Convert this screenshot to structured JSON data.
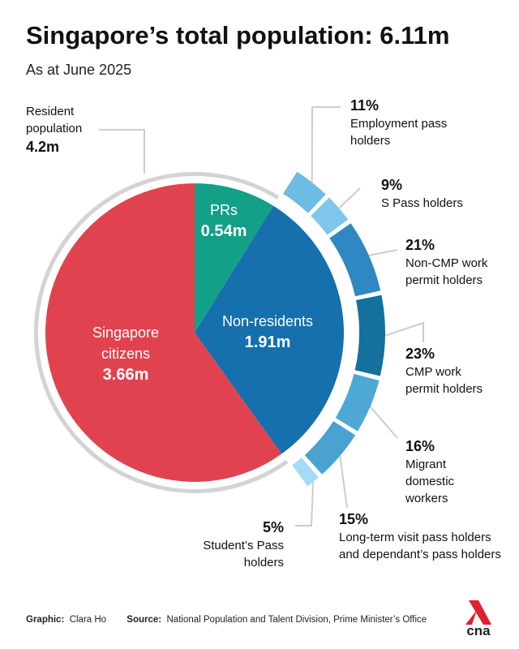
{
  "chart_data": {
    "type": "pie",
    "title": "Singapore’s total population: 6.11m",
    "subtitle": "As at June 2025",
    "categories": [
      "PRs",
      "Non-residents",
      "Singapore citizens"
    ],
    "values": [
      0.54,
      1.91,
      3.66
    ],
    "value_labels": [
      "0.54m",
      "1.91m",
      "3.66m"
    ],
    "colors": [
      "#12a087",
      "#1570ad",
      "#e0434f"
    ],
    "group": {
      "label": "Resident population",
      "value": 4.2,
      "value_label": "4.2m",
      "color": "#d3d3d3"
    },
    "breakdown": {
      "type": "ring",
      "categories": [
        "Employment pass holders",
        "S Pass holders",
        "Non-CMP work permit holders",
        "CMP work permit holders",
        "Migrant domestic workers",
        "Long-term visit pass holders and dependant’s pass holders",
        "Student’s Pass holders"
      ],
      "values": [
        11,
        9,
        21,
        23,
        16,
        15,
        5
      ],
      "value_labels": [
        "11%",
        "9%",
        "21%",
        "23%",
        "16%",
        "15%",
        "5%"
      ],
      "colors": [
        "#6cbce3",
        "#7ec6ea",
        "#2f88c3",
        "#13709f",
        "#4ea8d6",
        "#4aa2d1",
        "#a5dbf5"
      ]
    }
  },
  "footer": {
    "graphic_label": "Graphic:",
    "graphic": "Clara Ho",
    "source_label": "Source:",
    "source": "National Population and Talent Division, Prime Minister’s Office",
    "logo": "cna"
  }
}
